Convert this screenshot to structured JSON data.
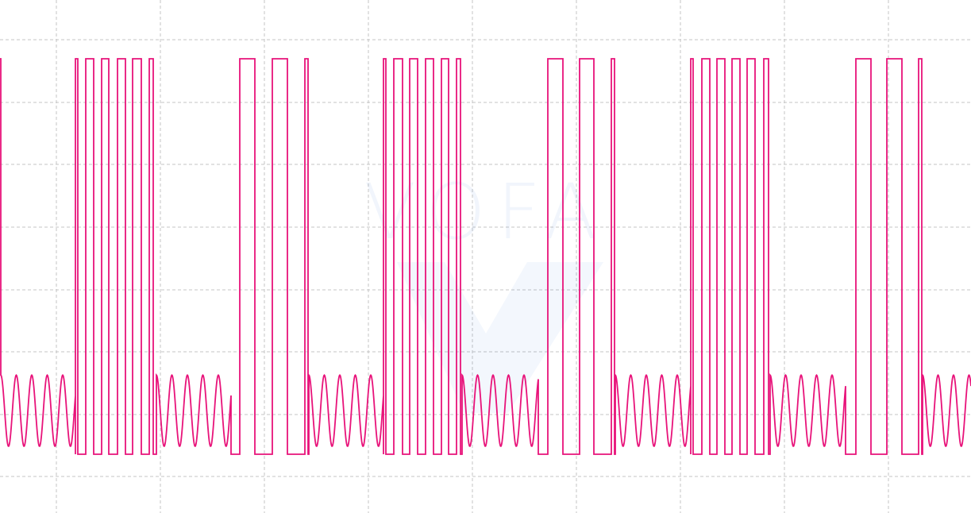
{
  "chart_data": {
    "type": "line",
    "title": "",
    "xlabel": "",
    "ylabel": "",
    "grid": true,
    "legend": "none",
    "xlim": [
      0,
      1223
    ],
    "ylim": [
      -0.2,
      1.14
    ],
    "series": [
      {
        "color": "#e8137a",
        "low_level": 0.0,
        "high_level": 1.0,
        "burst_min": 0.02,
        "burst_max": 0.2,
        "burst_period": 19.5,
        "segments": [
          {
            "kind": "high",
            "x": [
              0,
              1
            ]
          },
          {
            "kind": "burst",
            "x": [
              1,
              95
            ]
          },
          {
            "kind": "pulses",
            "x": [
              95,
              197
            ],
            "rising": [
              95,
              108,
              128,
              148,
              167,
              188
            ],
            "falling": [
              98,
              118,
              137,
              158,
              178,
              193
            ]
          },
          {
            "kind": "burst",
            "x": [
              197,
              291
            ]
          },
          {
            "kind": "pulses",
            "x": [
              291,
              389
            ],
            "rising": [
              302,
              343,
              384
            ],
            "falling": [
              321,
              362,
              388
            ]
          },
          {
            "kind": "burst",
            "x": [
              389,
              483
            ]
          },
          {
            "kind": "pulses",
            "x": [
              483,
              582
            ],
            "rising": [
              483,
              496,
              516,
              536,
              556,
              575
            ],
            "falling": [
              486,
              507,
              526,
              546,
              565,
              580
            ]
          },
          {
            "kind": "burst",
            "x": [
              582,
              678
            ]
          },
          {
            "kind": "pulses",
            "x": [
              678,
              775
            ],
            "rising": [
              690,
              730,
              770
            ],
            "falling": [
              709,
              748,
              774
            ]
          },
          {
            "kind": "burst",
            "x": [
              775,
              870
            ]
          },
          {
            "kind": "pulses",
            "x": [
              870,
              970
            ],
            "rising": [
              870,
              884,
              903,
              922,
              941,
              962
            ],
            "falling": [
              873,
              894,
              913,
              932,
              951,
              968
            ]
          },
          {
            "kind": "burst",
            "x": [
              970,
              1065
            ]
          },
          {
            "kind": "pulses",
            "x": [
              1065,
              1162
            ],
            "rising": [
              1078,
              1117,
              1157
            ],
            "falling": [
              1097,
              1136,
              1161
            ]
          },
          {
            "kind": "burst",
            "x": [
              1162,
              1223
            ]
          }
        ]
      }
    ]
  },
  "watermark": {
    "text": "VOFA",
    "color": "#3b6fd8"
  }
}
